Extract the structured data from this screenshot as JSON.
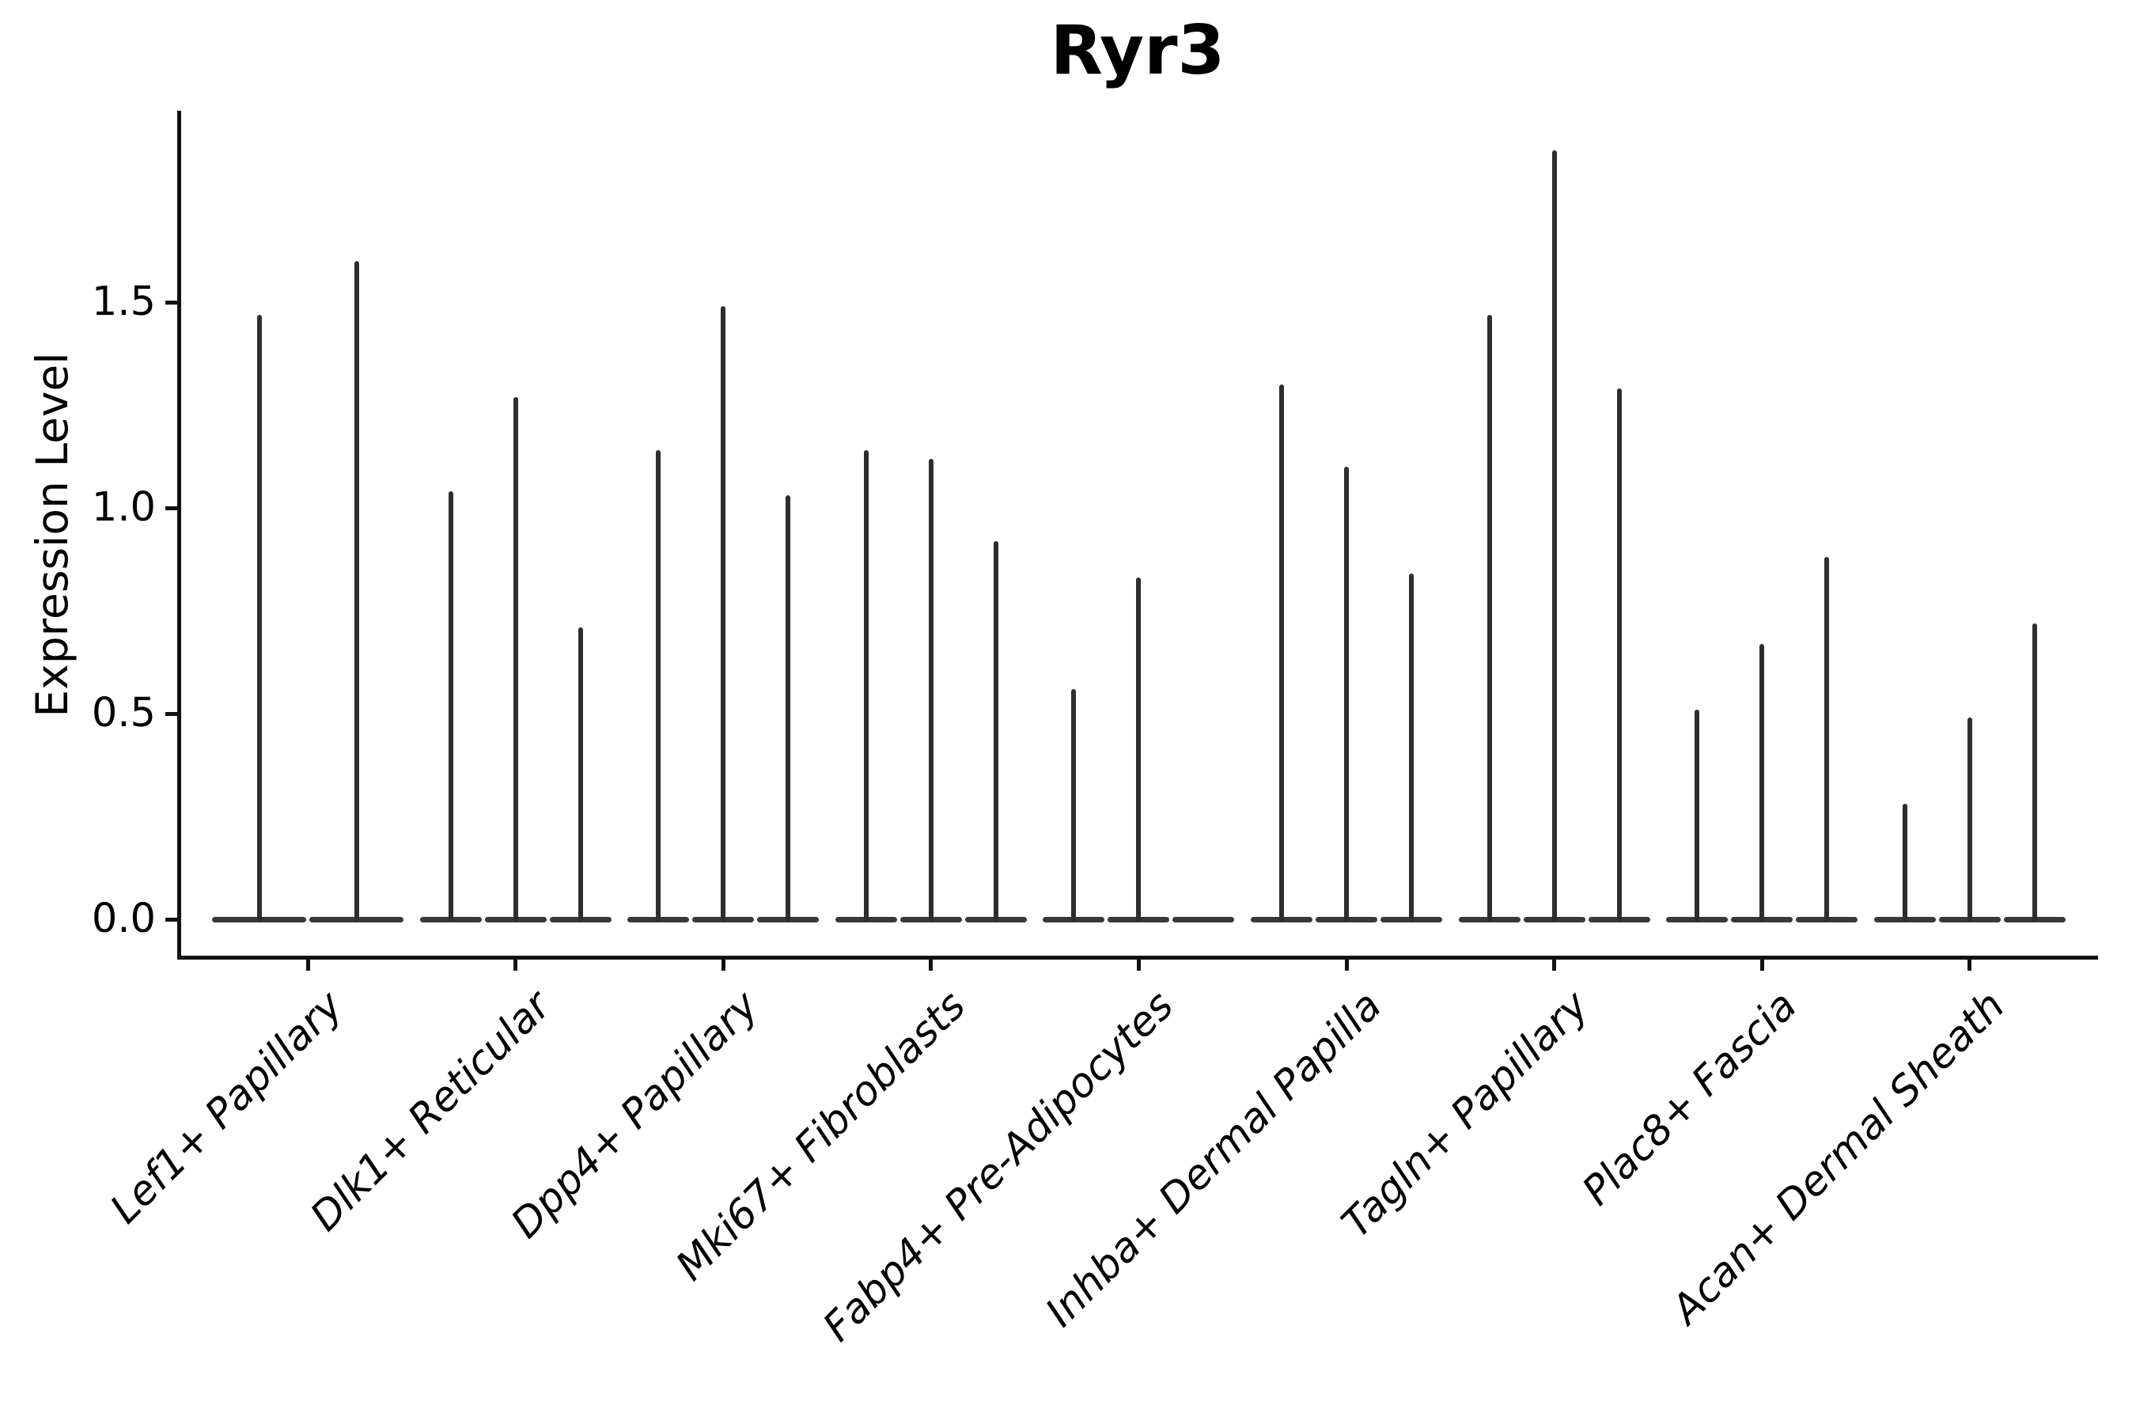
{
  "chart_data": {
    "type": "violin",
    "title": "Ryr3",
    "xlabel": "",
    "ylabel": "Expression Level",
    "ylim": [
      -0.09,
      1.97
    ],
    "grid": false,
    "legend": "none",
    "yticks": [
      {
        "value": 0.0,
        "label": "0.0"
      },
      {
        "value": 0.5,
        "label": "0.5"
      },
      {
        "value": 1.0,
        "label": "1.0"
      },
      {
        "value": 1.5,
        "label": "1.5"
      }
    ],
    "description": "Stacked-violin style expression plot; each category shows 2-3 extremely narrow violins (spikes) rising from a flat baseline at 0. Spike values are the maximum expression level reached.",
    "groups": [
      {
        "label": "Lef1+ Papillary",
        "violins": [
          1.47,
          1.6
        ]
      },
      {
        "label": "Dlk1+ Reticular",
        "violins": [
          1.04,
          1.27,
          0.71
        ]
      },
      {
        "label": "Dpp4+ Papillary",
        "violins": [
          1.14,
          1.49,
          1.03
        ]
      },
      {
        "label": "Mki67+ Fibroblasts",
        "violins": [
          1.14,
          1.12,
          0.92
        ]
      },
      {
        "label": "Fabp4+ Pre-Adipocytes",
        "violins": [
          0.56,
          0.83,
          0.0
        ]
      },
      {
        "label": "Inhba+ Dermal Papilla",
        "violins": [
          1.3,
          1.1,
          0.84
        ]
      },
      {
        "label": "Tagln+ Papillary",
        "violins": [
          1.47,
          1.87,
          1.29
        ]
      },
      {
        "label": "Plac8+ Fascia",
        "violins": [
          0.51,
          0.67,
          0.88
        ]
      },
      {
        "label": "Acan+ Dermal Sheath",
        "violins": [
          0.28,
          0.49,
          0.72
        ]
      }
    ]
  }
}
